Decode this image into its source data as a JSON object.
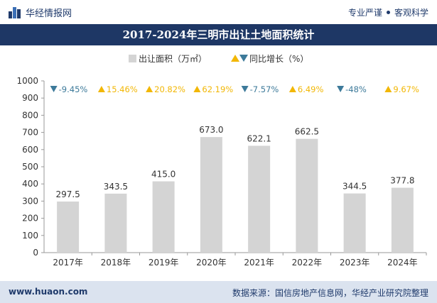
{
  "header": {
    "brand": "华经情报网",
    "slogan_left": "专业严谨",
    "slogan_right": "客观科学"
  },
  "chart_data": {
    "type": "bar",
    "title": "2017-2024年三明市出让土地面积统计",
    "categories": [
      "2017年",
      "2018年",
      "2019年",
      "2020年",
      "2021年",
      "2022年",
      "2023年",
      "2024年"
    ],
    "series": [
      {
        "name": "出让面积（万㎡）",
        "values": [
          297.5,
          343.5,
          415.0,
          673.0,
          622.1,
          662.5,
          344.5,
          377.8
        ],
        "labels": [
          "297.5",
          "343.5",
          "415.0",
          "673.0",
          "622.1",
          "662.5",
          "344.5",
          "377.8"
        ],
        "color": "#d4d4d4"
      }
    ],
    "growth": {
      "name": "同比增长（%）",
      "labels": [
        "-9.45%",
        "15.46%",
        "20.82%",
        "62.19%",
        "-7.57%",
        "6.49%",
        "-48%",
        "9.67%"
      ],
      "directions": [
        "down",
        "up",
        "up",
        "up",
        "down",
        "up",
        "down",
        "up"
      ],
      "up_color": "#f2b705",
      "down_color": "#3d7a9a"
    },
    "ylim": [
      0,
      1000
    ],
    "yticks": [
      0,
      100,
      200,
      300,
      400,
      500,
      600,
      700,
      800,
      900,
      1000
    ],
    "grid": false,
    "legend_position": "top-center"
  },
  "footer": {
    "website": "www.huaon.com",
    "source": "数据来源：国信房地产信息网，华经产业研究院整理"
  }
}
